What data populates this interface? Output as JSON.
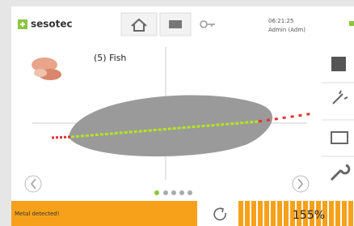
{
  "header": {
    "logo": "sesotec",
    "time": "06:21:25",
    "user": "Admin (Adm)"
  },
  "product": {
    "name": "(5) Fish"
  },
  "status": {
    "message": "Metal detected!",
    "level": "155%"
  }
}
